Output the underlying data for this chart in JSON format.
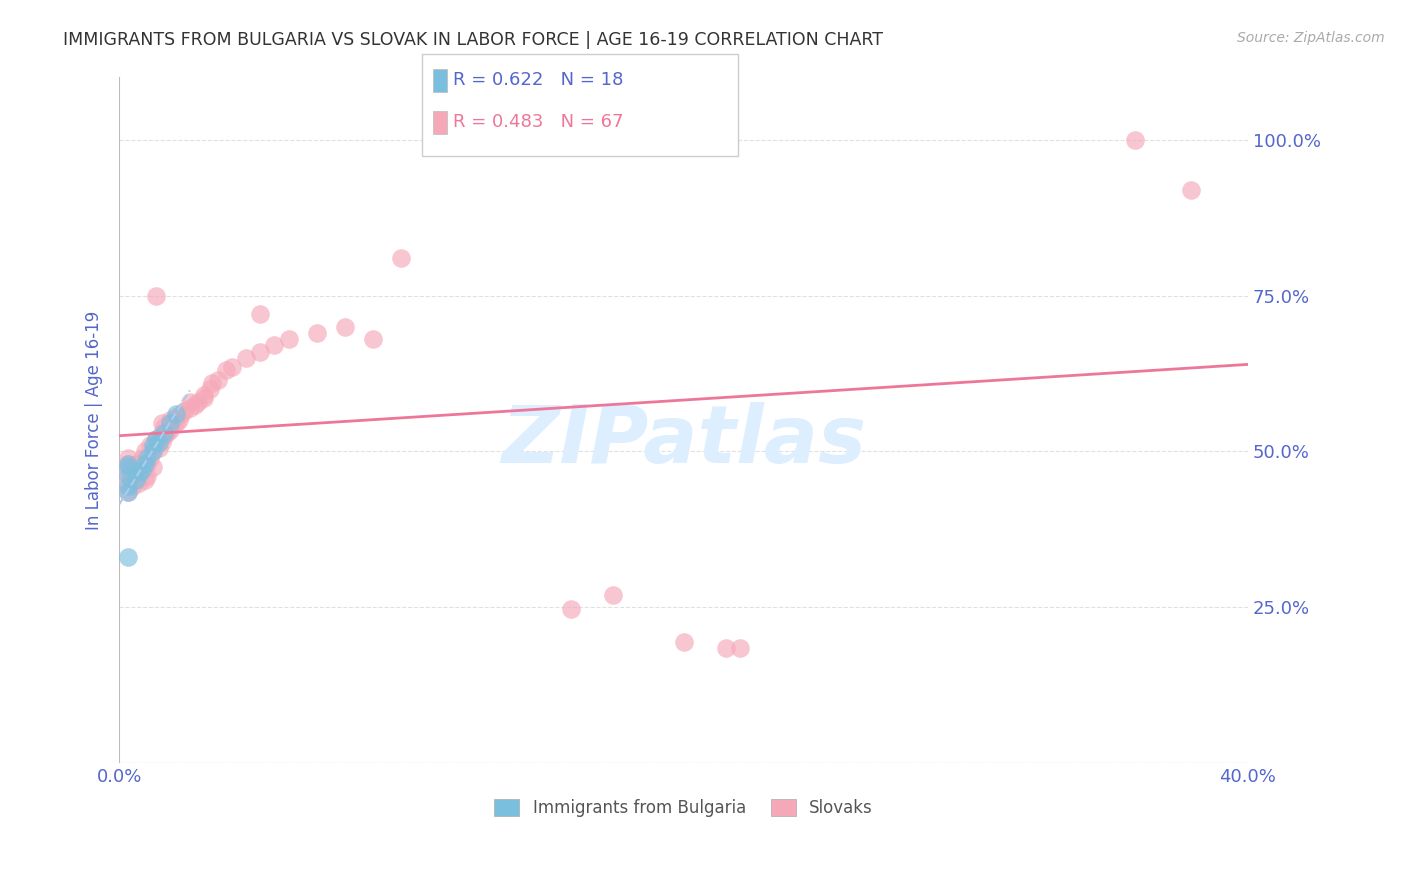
{
  "title": "IMMIGRANTS FROM BULGARIA VS SLOVAK IN LABOR FORCE | AGE 16-19 CORRELATION CHART",
  "source": "Source: ZipAtlas.com",
  "ylabel": "In Labor Force | Age 16-19",
  "xlim": [
    0.0,
    0.4
  ],
  "ylim": [
    0.0,
    1.1
  ],
  "xticks": [
    0.0,
    0.05,
    0.1,
    0.15,
    0.2,
    0.25,
    0.3,
    0.35,
    0.4
  ],
  "xticklabels": [
    "0.0%",
    "",
    "",
    "",
    "",
    "",
    "",
    "",
    "40.0%"
  ],
  "yticks_left": [
    0.0,
    0.25,
    0.5,
    0.75,
    1.0
  ],
  "yticklabels_left": [
    "",
    "",
    "",
    "",
    ""
  ],
  "yticks_right": [
    0.0,
    0.25,
    0.5,
    0.75,
    1.0
  ],
  "yticklabels_right": [
    "",
    "25.0%",
    "50.0%",
    "75.0%",
    "100.0%"
  ],
  "bulgaria_R": 0.622,
  "bulgaria_N": 18,
  "slovak_R": 0.483,
  "slovak_N": 67,
  "bulgaria_color": "#7bbfdf",
  "slovak_color": "#f5a8b8",
  "bulgaria_line_color": "#4488cc",
  "slovak_line_color": "#ee7799",
  "watermark_text": "ZIPatlas",
  "watermark_color": "#ddeeff",
  "bulgaria_scatter": [
    [
      0.003,
      0.435
    ],
    [
      0.003,
      0.445
    ],
    [
      0.003,
      0.46
    ],
    [
      0.003,
      0.475
    ],
    [
      0.003,
      0.48
    ],
    [
      0.006,
      0.455
    ],
    [
      0.007,
      0.465
    ],
    [
      0.008,
      0.47
    ],
    [
      0.009,
      0.48
    ],
    [
      0.01,
      0.49
    ],
    [
      0.012,
      0.5
    ],
    [
      0.012,
      0.51
    ],
    [
      0.013,
      0.52
    ],
    [
      0.014,
      0.515
    ],
    [
      0.016,
      0.53
    ],
    [
      0.018,
      0.545
    ],
    [
      0.02,
      0.56
    ],
    [
      0.003,
      0.33
    ]
  ],
  "slovak_scatter": [
    [
      0.003,
      0.435
    ],
    [
      0.003,
      0.45
    ],
    [
      0.003,
      0.465
    ],
    [
      0.003,
      0.48
    ],
    [
      0.003,
      0.49
    ],
    [
      0.004,
      0.46
    ],
    [
      0.005,
      0.445
    ],
    [
      0.005,
      0.455
    ],
    [
      0.006,
      0.47
    ],
    [
      0.006,
      0.48
    ],
    [
      0.007,
      0.45
    ],
    [
      0.007,
      0.46
    ],
    [
      0.008,
      0.475
    ],
    [
      0.008,
      0.49
    ],
    [
      0.009,
      0.455
    ],
    [
      0.009,
      0.5
    ],
    [
      0.01,
      0.46
    ],
    [
      0.01,
      0.48
    ],
    [
      0.011,
      0.49
    ],
    [
      0.011,
      0.51
    ],
    [
      0.012,
      0.475
    ],
    [
      0.012,
      0.5
    ],
    [
      0.013,
      0.51
    ],
    [
      0.013,
      0.52
    ],
    [
      0.014,
      0.505
    ],
    [
      0.015,
      0.515
    ],
    [
      0.015,
      0.53
    ],
    [
      0.015,
      0.545
    ],
    [
      0.016,
      0.525
    ],
    [
      0.016,
      0.54
    ],
    [
      0.017,
      0.53
    ],
    [
      0.018,
      0.535
    ],
    [
      0.018,
      0.55
    ],
    [
      0.019,
      0.545
    ],
    [
      0.02,
      0.545
    ],
    [
      0.02,
      0.555
    ],
    [
      0.021,
      0.55
    ],
    [
      0.022,
      0.56
    ],
    [
      0.023,
      0.565
    ],
    [
      0.025,
      0.57
    ],
    [
      0.025,
      0.58
    ],
    [
      0.027,
      0.575
    ],
    [
      0.028,
      0.58
    ],
    [
      0.03,
      0.585
    ],
    [
      0.03,
      0.59
    ],
    [
      0.032,
      0.6
    ],
    [
      0.033,
      0.61
    ],
    [
      0.035,
      0.615
    ],
    [
      0.038,
      0.63
    ],
    [
      0.04,
      0.635
    ],
    [
      0.045,
      0.65
    ],
    [
      0.05,
      0.66
    ],
    [
      0.055,
      0.67
    ],
    [
      0.06,
      0.68
    ],
    [
      0.07,
      0.69
    ],
    [
      0.08,
      0.7
    ],
    [
      0.09,
      0.68
    ],
    [
      0.013,
      0.75
    ],
    [
      0.05,
      0.72
    ],
    [
      0.1,
      0.81
    ],
    [
      0.16,
      0.248
    ],
    [
      0.175,
      0.27
    ],
    [
      0.2,
      0.195
    ],
    [
      0.215,
      0.185
    ],
    [
      0.22,
      0.185
    ],
    [
      0.36,
      1.0
    ],
    [
      0.38,
      0.92
    ]
  ],
  "grid_color": "#dddddd",
  "background_color": "#ffffff",
  "title_color": "#333333",
  "source_color": "#aaaaaa",
  "axis_label_color": "#5566cc",
  "tick_label_color": "#5566cc"
}
